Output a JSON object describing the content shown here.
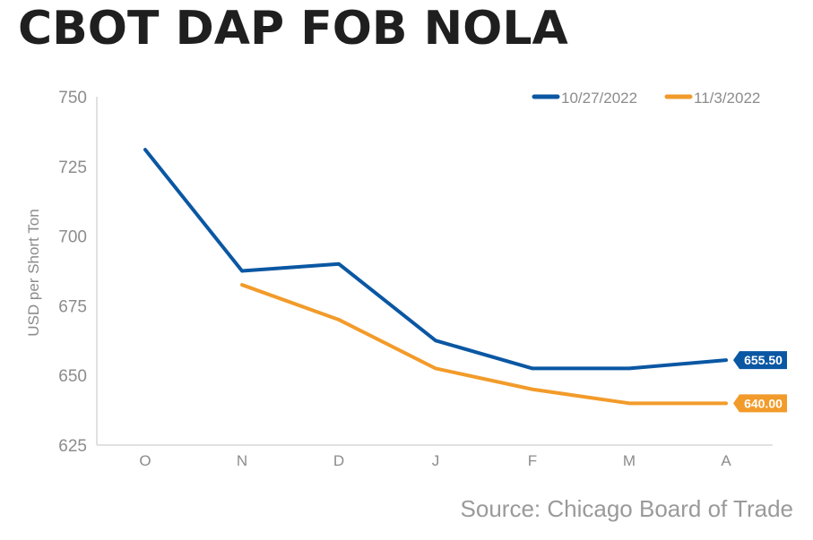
{
  "title": "CBOT DAP FOB NOLA",
  "source": "Source: Chicago Board of Trade",
  "chart_data": {
    "type": "line",
    "title": "CBOT DAP FOB NOLA",
    "ylabel": "USD per Short Ton",
    "xlabel": "",
    "categories": [
      "O",
      "N",
      "D",
      "J",
      "F",
      "M",
      "A"
    ],
    "ylim": [
      625,
      750
    ],
    "yticks": [
      "750",
      "725",
      "700",
      "675",
      "650",
      "625"
    ],
    "legend_position": "top-right",
    "grid": false,
    "series": [
      {
        "name": "10/27/2022",
        "color": "#0a57a3",
        "values": [
          731,
          687.5,
          690,
          662.5,
          652.5,
          652.5,
          655.5
        ],
        "end_label": "655.50"
      },
      {
        "name": "11/3/2022",
        "color": "#f29b2a",
        "values": [
          null,
          682.5,
          670,
          652.5,
          645,
          640,
          640
        ],
        "end_label": "640.00"
      }
    ]
  }
}
